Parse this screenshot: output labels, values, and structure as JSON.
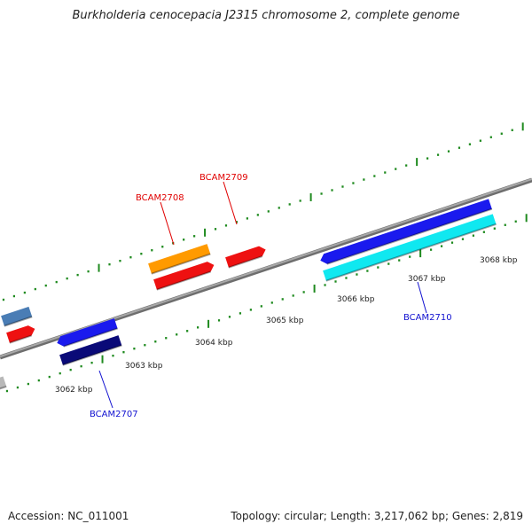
{
  "title": "Burkholderia cenocepacia J2315 chromosome 2, complete genome",
  "colors": {
    "backbone": "#8c8c8c",
    "tick": "#1e8a1e",
    "label_red": "#e00000",
    "label_blue": "#1010d0",
    "ruler_text": "#222222"
  },
  "ruler_labels": [
    "3062 kbp",
    "3063 kbp",
    "3064 kbp",
    "3065 kbp",
    "3066 kbp",
    "3067 kbp",
    "3068 kbp"
  ],
  "gene_labels": [
    {
      "text": "BCAM2707",
      "color": "#1010d0"
    },
    {
      "text": "BCAM2708",
      "color": "#e00000"
    },
    {
      "text": "BCAM2709",
      "color": "#e00000"
    },
    {
      "text": "BCAM2710",
      "color": "#1010d0"
    }
  ],
  "features": [
    {
      "name": "feature-steelblue-left",
      "color": "#4a7db5"
    },
    {
      "name": "feature-red-left",
      "color": "#ee1111"
    },
    {
      "name": "feature-blue-2707",
      "color": "#1a1aee"
    },
    {
      "name": "feature-navy-2707",
      "color": "#0a0a78"
    },
    {
      "name": "feature-orange-2708",
      "color": "#ff9a00"
    },
    {
      "name": "feature-red-2708",
      "color": "#ee1111"
    },
    {
      "name": "feature-red-2709",
      "color": "#ee1111"
    },
    {
      "name": "feature-blue-2710",
      "color": "#1a1aee"
    },
    {
      "name": "feature-cyan-2710",
      "color": "#10e8f0"
    },
    {
      "name": "feature-gray-edge",
      "color": "#b8b8b8"
    }
  ],
  "footer": {
    "accession": "Accession: NC_011001",
    "summary": "Topology: circular; Length: 3,217,062 bp; Genes: 2,819"
  }
}
